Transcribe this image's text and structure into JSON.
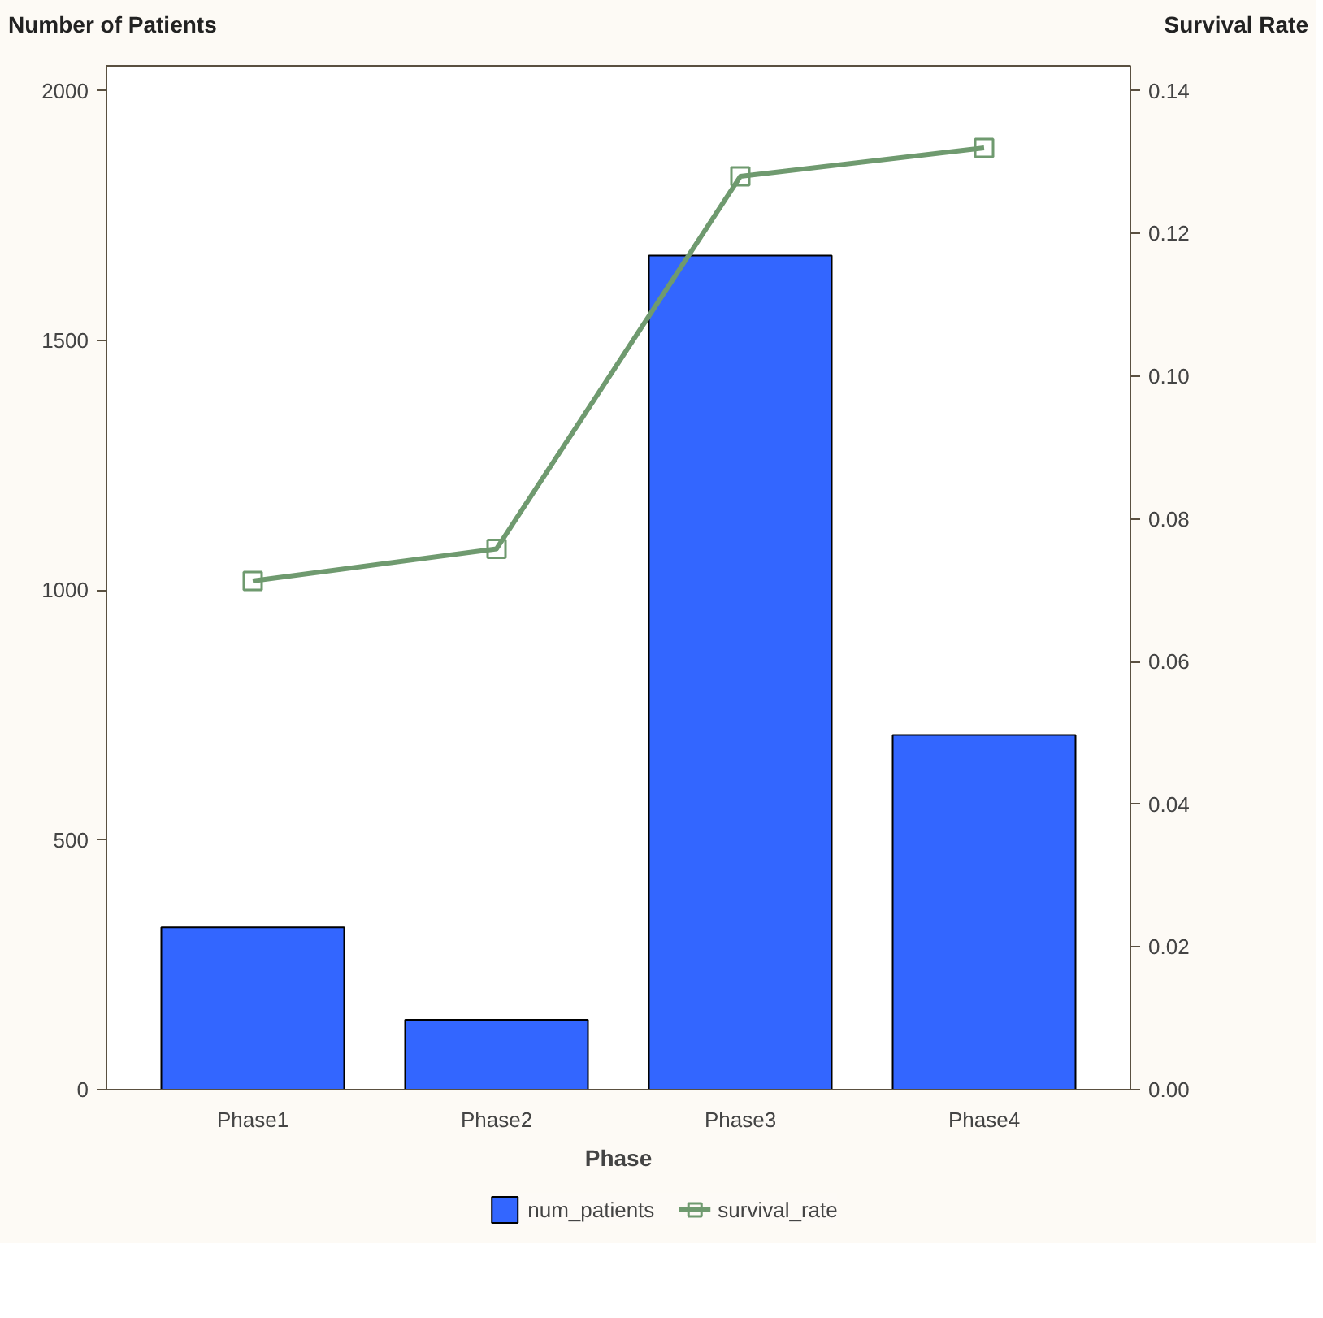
{
  "chart_data": {
    "type": "bar",
    "xlabel": "Phase",
    "ylabel": "Number of Patients",
    "y2label": "Survival Rate",
    "categories": [
      "Phase1",
      "Phase2",
      "Phase3",
      "Phase4"
    ],
    "series": [
      {
        "name": "num_patients",
        "color": "#3366ff",
        "values": [
          325,
          140,
          1670,
          710
        ]
      },
      {
        "name": "survival_rate",
        "type": "line",
        "axis": "y2",
        "color": "#6f9a6f",
        "marker": "square",
        "values": [
          0.0713,
          0.0758,
          0.128,
          0.132
        ]
      }
    ],
    "ylim": [
      0,
      2050
    ],
    "yticks": [
      0,
      500,
      1000,
      1500,
      2000
    ],
    "y2lim": [
      0,
      0.1435
    ],
    "y2ticks": [
      {
        "value": 0,
        "label": "0.00"
      },
      {
        "value": 0.02,
        "label": "0.02"
      },
      {
        "value": 0.04,
        "label": "0.04"
      },
      {
        "value": 0.06,
        "label": "0.06"
      },
      {
        "value": 0.08,
        "label": "0.08"
      },
      {
        "value": 0.1,
        "label": "0.10"
      },
      {
        "value": 0.12,
        "label": "0.12"
      },
      {
        "value": 0.14,
        "label": "0.14"
      }
    ],
    "grid": false,
    "legend": "bottom"
  }
}
